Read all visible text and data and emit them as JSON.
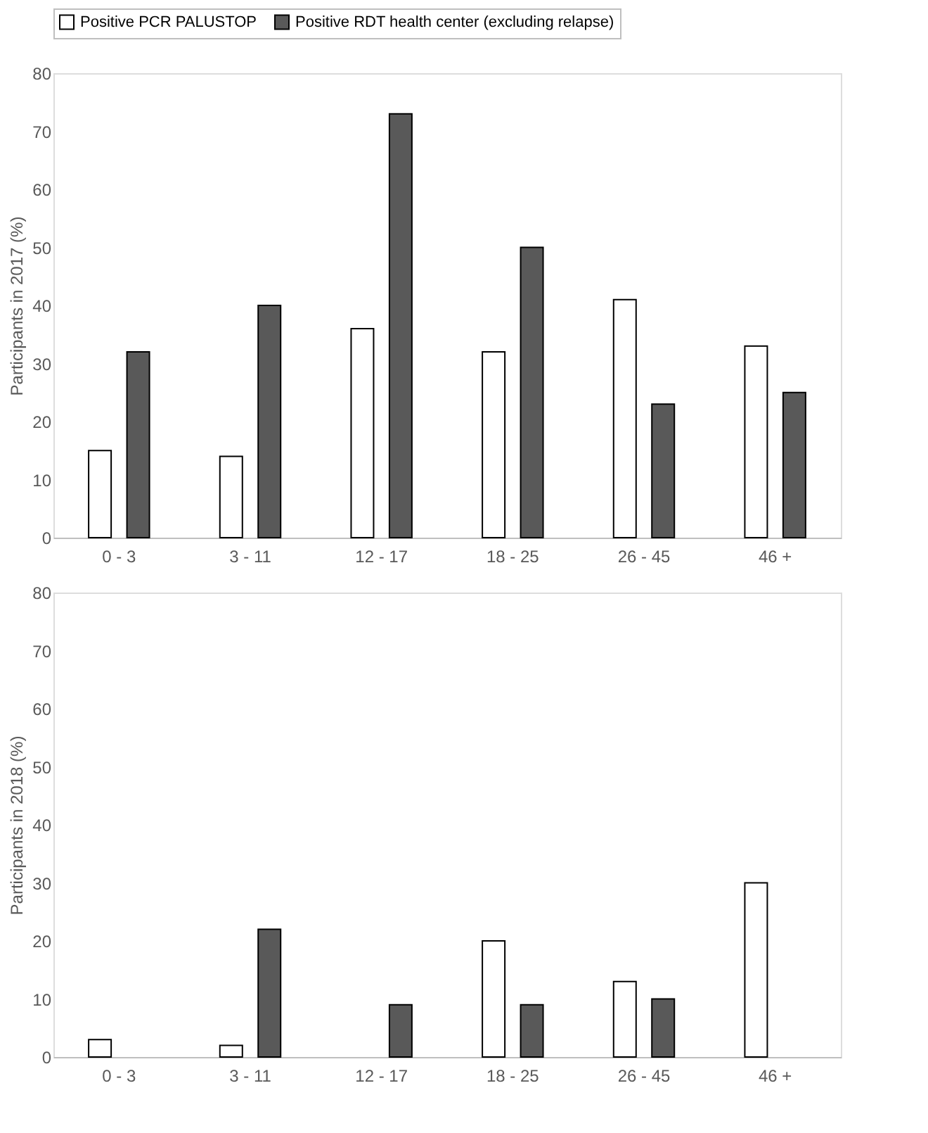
{
  "chart_data": [
    {
      "type": "bar",
      "ylabel": "Participants in 2017 (%)",
      "categories": [
        "0 - 3",
        "3 - 11",
        "12 - 17",
        "18 - 25",
        "26 - 45",
        "46 +"
      ],
      "ylim": [
        0,
        80
      ],
      "yticks": [
        0,
        10,
        20,
        30,
        40,
        50,
        60,
        70,
        80
      ],
      "grid": false,
      "legend": "top",
      "series": [
        {
          "name": "Positive PCR PALUSTOP",
          "color": "#ffffff",
          "values": [
            15,
            14,
            36,
            32,
            41,
            33
          ]
        },
        {
          "name": "Positive RDT health center (excluding relapse)",
          "color": "#595959",
          "values": [
            32,
            40,
            73,
            50,
            23,
            25
          ]
        }
      ]
    },
    {
      "type": "bar",
      "ylabel": "Participants in 2018 (%)",
      "categories": [
        "0 - 3",
        "3 - 11",
        "12 - 17",
        "18 - 25",
        "26 - 45",
        "46 +"
      ],
      "ylim": [
        0,
        80
      ],
      "yticks": [
        0,
        10,
        20,
        30,
        40,
        50,
        60,
        70,
        80
      ],
      "grid": false,
      "legend": false,
      "series": [
        {
          "name": "Positive PCR PALUSTOP",
          "color": "#ffffff",
          "values": [
            3,
            2,
            null,
            20,
            13,
            30
          ]
        },
        {
          "name": "Positive RDT health center (excluding relapse)",
          "color": "#595959",
          "values": [
            null,
            22,
            9,
            9,
            10,
            null
          ]
        }
      ]
    }
  ]
}
